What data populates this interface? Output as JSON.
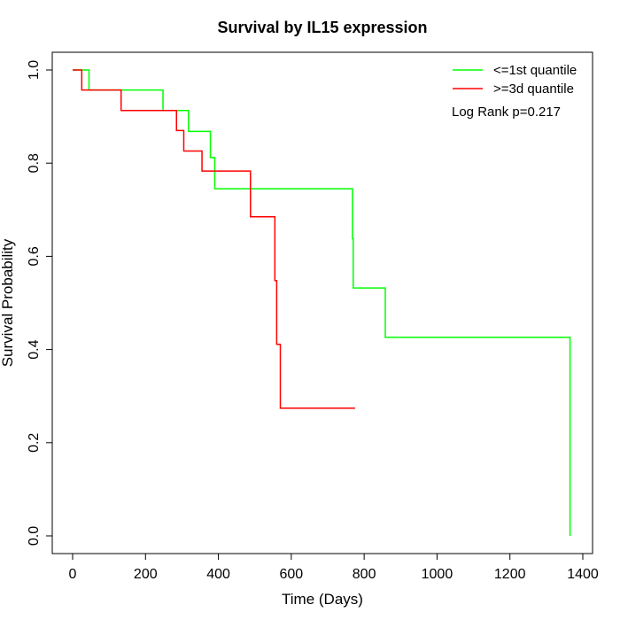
{
  "chart_data": {
    "type": "line",
    "title": "Survival by IL15 expression",
    "xlabel": "Time (Days)",
    "ylabel": "Survival Probability",
    "xlim": [
      0,
      1400
    ],
    "ylim": [
      0,
      1.0
    ],
    "x_ticks": [
      "0",
      "200",
      "400",
      "600",
      "800",
      "1000",
      "1200",
      "1400"
    ],
    "y_ticks": [
      "0.0",
      "0.2",
      "0.4",
      "0.6",
      "0.8",
      "1.0"
    ],
    "legend_position": "top-right",
    "annotation": "Log Rank p=0.217",
    "series": [
      {
        "name": "<=1st quantile",
        "color": "#00ff00",
        "step": true,
        "points": [
          [
            0,
            1.0
          ],
          [
            45,
            1.0
          ],
          [
            45,
            0.957
          ],
          [
            248,
            0.957
          ],
          [
            248,
            0.913
          ],
          [
            318,
            0.913
          ],
          [
            318,
            0.868
          ],
          [
            378,
            0.868
          ],
          [
            378,
            0.812
          ],
          [
            390,
            0.812
          ],
          [
            390,
            0.745
          ],
          [
            768,
            0.745
          ],
          [
            768,
            0.638
          ],
          [
            770,
            0.638
          ],
          [
            770,
            0.532
          ],
          [
            858,
            0.532
          ],
          [
            858,
            0.426
          ],
          [
            1365,
            0.426
          ],
          [
            1365,
            0.0
          ]
        ]
      },
      {
        "name": ">=3d quantile",
        "color": "#ff0000",
        "step": true,
        "points": [
          [
            0,
            1.0
          ],
          [
            25,
            1.0
          ],
          [
            25,
            0.957
          ],
          [
            133,
            0.957
          ],
          [
            133,
            0.913
          ],
          [
            285,
            0.913
          ],
          [
            285,
            0.87
          ],
          [
            305,
            0.87
          ],
          [
            305,
            0.826
          ],
          [
            355,
            0.826
          ],
          [
            355,
            0.783
          ],
          [
            488,
            0.783
          ],
          [
            488,
            0.685
          ],
          [
            555,
            0.685
          ],
          [
            555,
            0.548
          ],
          [
            560,
            0.548
          ],
          [
            560,
            0.411
          ],
          [
            570,
            0.411
          ],
          [
            570,
            0.274
          ],
          [
            775,
            0.274
          ]
        ]
      }
    ]
  }
}
